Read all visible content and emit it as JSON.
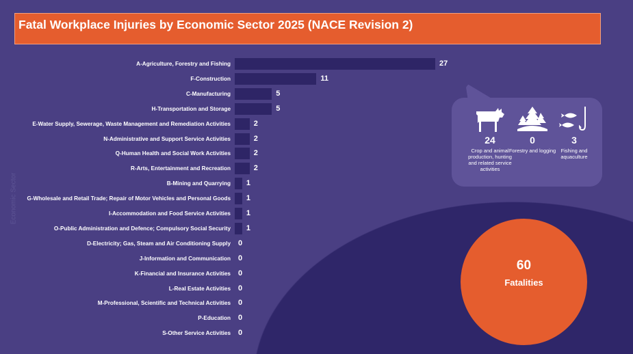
{
  "title": "Fatal Workplace Injuries by Economic Sector 2025 (NACE Revision 2)",
  "chart_data": {
    "type": "bar",
    "orientation": "horizontal",
    "title": "Fatal Workplace Injuries by Economic Sector 2025 (NACE Revision 2)",
    "ylabel": "Economic Sector",
    "xlim": [
      0,
      27
    ],
    "categories": [
      "A-Agriculture, Forestry and Fishing",
      "F-Construction",
      "C-Manufacturing",
      "H-Transportation and Storage",
      "E-Water Supply, Sewerage, Waste Management and Remediation Activities",
      "N-Administrative and Support Service Activities",
      "Q-Human Health and Social Work Activities",
      "R-Arts, Entertainment and Recreation",
      "B-Mining and Quarrying",
      "G-Wholesale and Retail Trade; Repair of Motor Vehicles and Personal Goods",
      "I-Accommodation and Food Service Activities",
      "O-Public Administration and Defence; Compulsory Social Security",
      "D-Electricity; Gas, Steam and Air Conditioning Supply",
      "J-Information and Communication",
      "K-Financial and Insurance Activities",
      "L-Real Estate Activities",
      "M-Professional, Scientific and Technical Activities",
      "P-Education",
      "S-Other Service Activities"
    ],
    "values": [
      27,
      11,
      5,
      5,
      2,
      2,
      2,
      2,
      1,
      1,
      1,
      1,
      0,
      0,
      0,
      0,
      0,
      0,
      0
    ]
  },
  "breakdown": [
    {
      "icon": "cow-icon",
      "value": "24",
      "label": "Crop and animal production, hunting and related service activities"
    },
    {
      "icon": "trees-icon",
      "value": "0",
      "label": "Forestry and logging"
    },
    {
      "icon": "fish-hook-icon",
      "value": "3",
      "label": "Fishing and aquaculture"
    }
  ],
  "total": {
    "value": "60",
    "label": "Fatalities"
  },
  "colors": {
    "background": "#4a3f83",
    "bar": "#2e2566",
    "accent": "#e55d2e"
  }
}
